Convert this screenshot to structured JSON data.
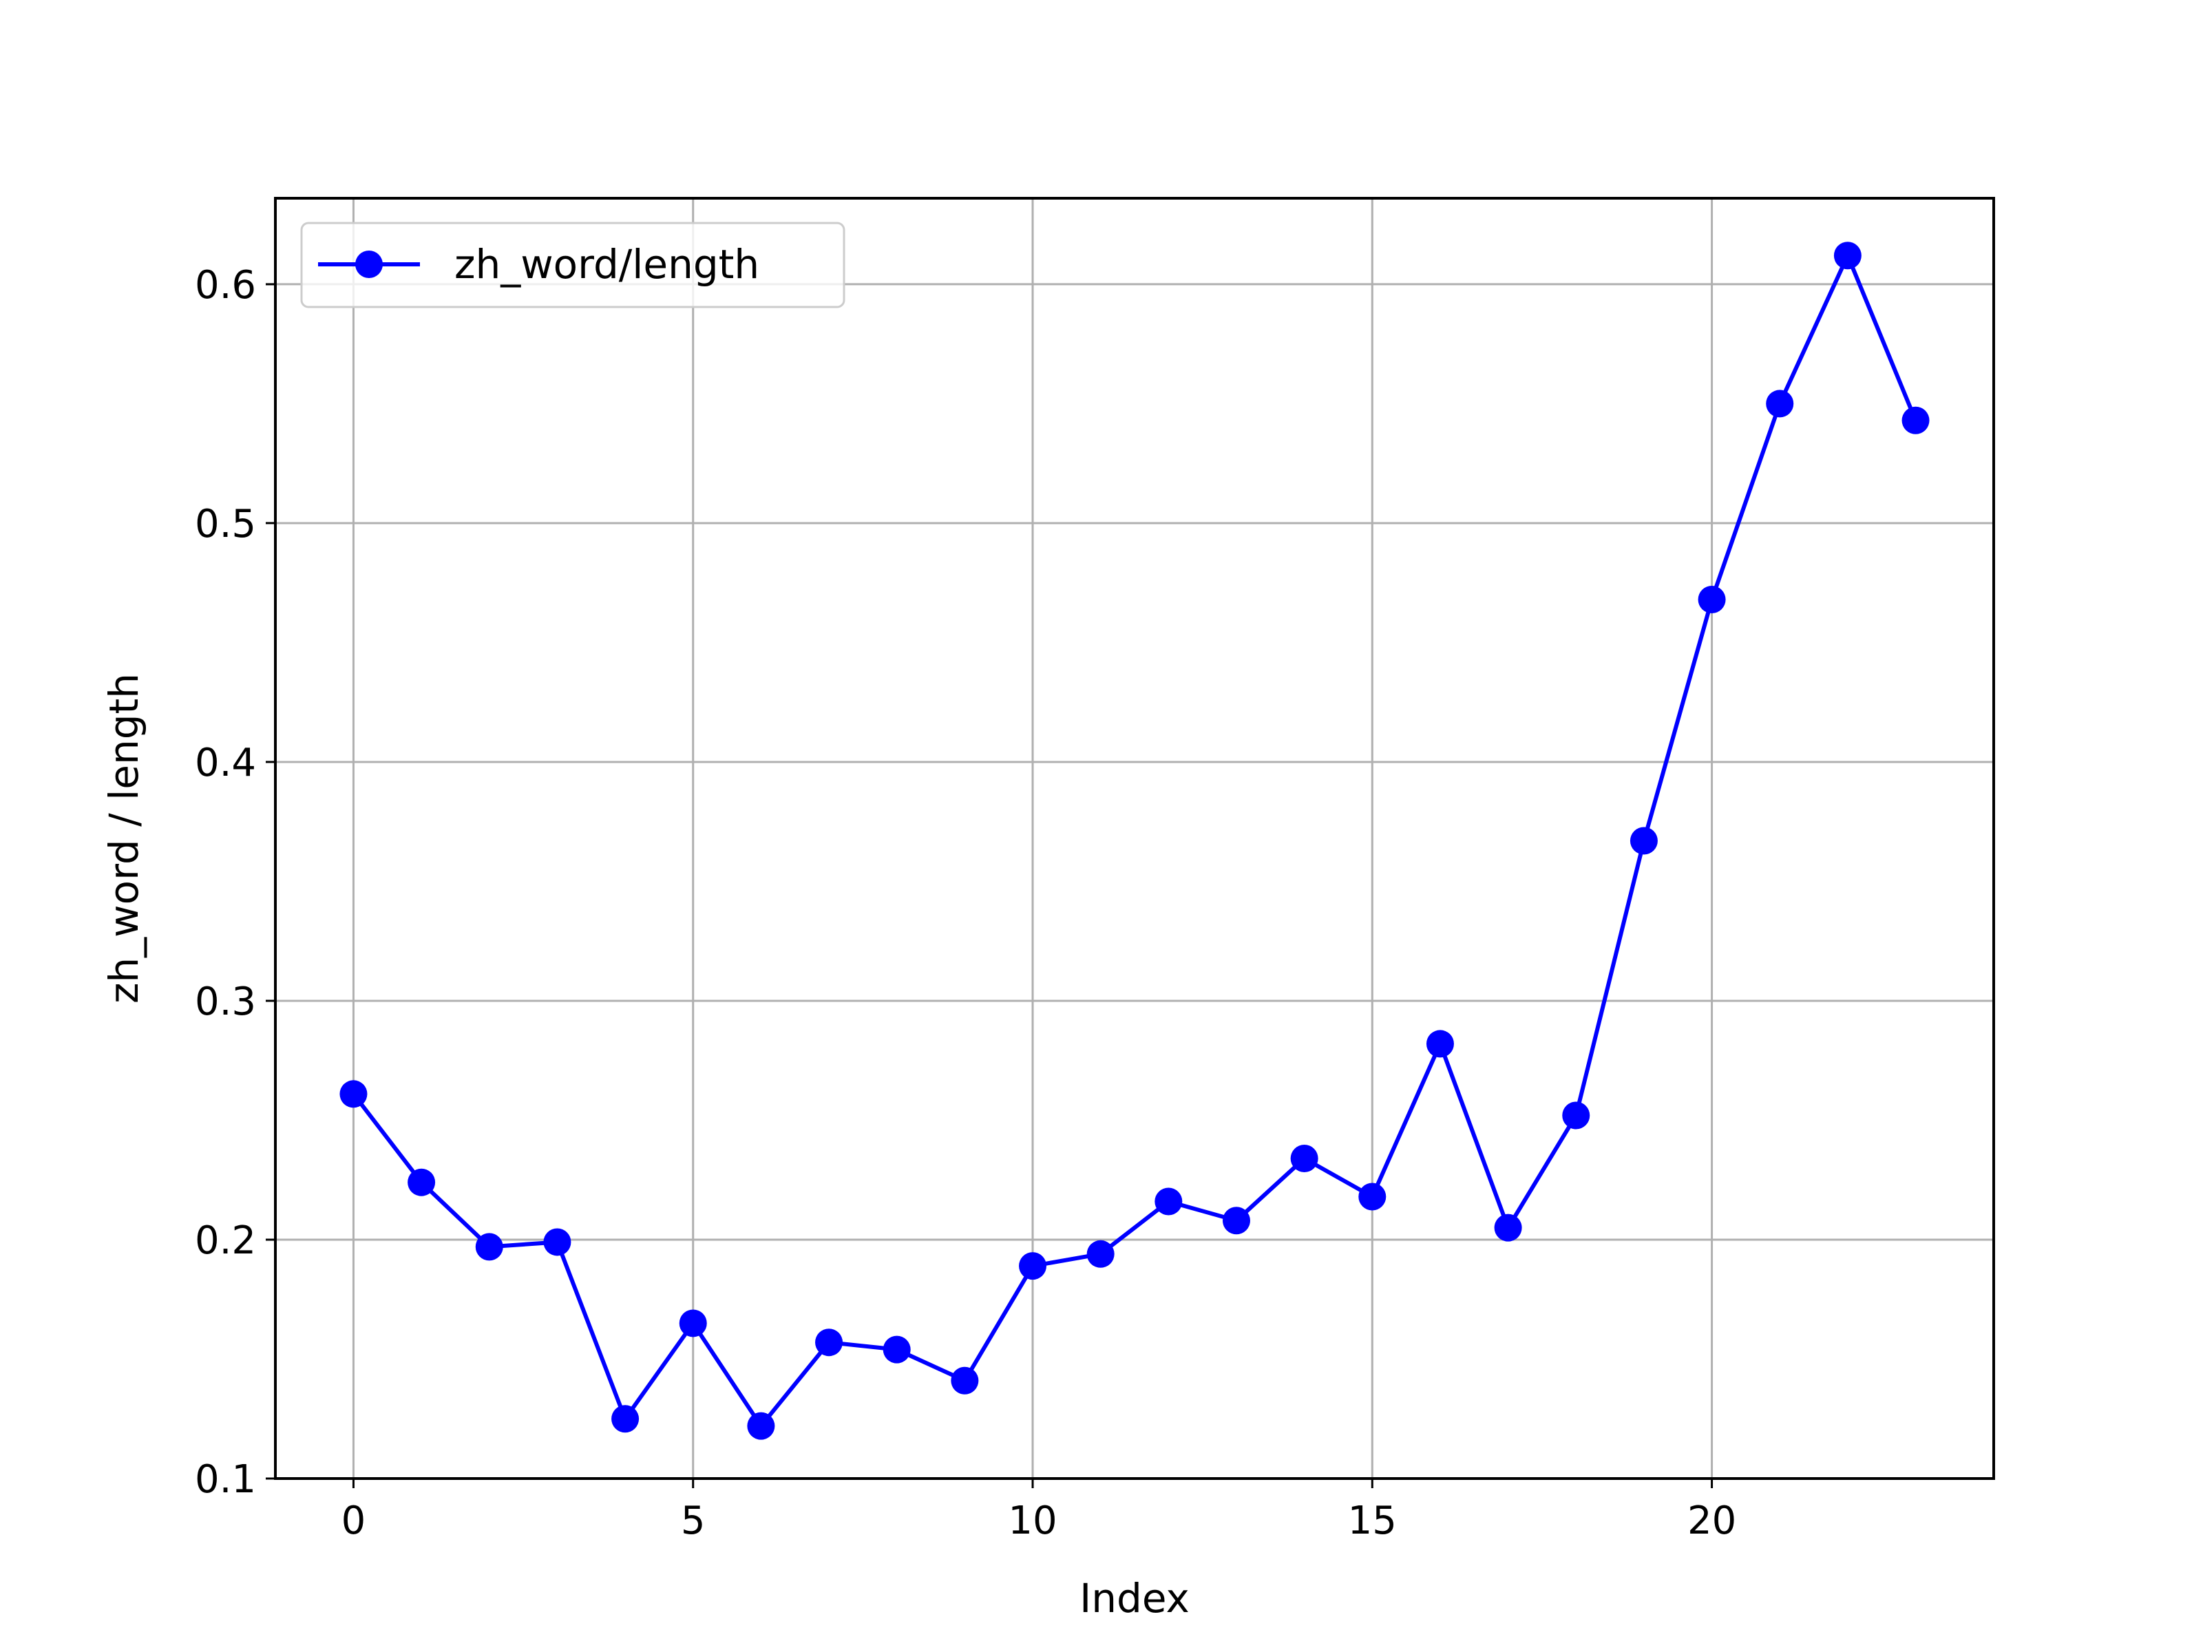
{
  "chart_data": {
    "type": "line",
    "title": "",
    "xlabel": "Index",
    "ylabel": "zh_word / length",
    "xlim": [
      -1.15,
      24.15
    ],
    "ylim": [
      0.1,
      0.636
    ],
    "xticks": [
      0,
      5,
      10,
      15,
      20
    ],
    "yticks": [
      0.1,
      0.2,
      0.3,
      0.4,
      0.5,
      0.6
    ],
    "xtick_labels": [
      "0",
      "5",
      "10",
      "15",
      "20"
    ],
    "ytick_labels": [
      "0.1",
      "0.2",
      "0.3",
      "0.4",
      "0.5",
      "0.6"
    ],
    "grid": true,
    "legend_position": "upper left",
    "series": [
      {
        "name": "zh_word/length",
        "color": "#0000ff",
        "marker": "circle",
        "x": [
          0,
          1,
          2,
          3,
          4,
          5,
          6,
          7,
          8,
          9,
          10,
          11,
          12,
          13,
          14,
          15,
          16,
          17,
          18,
          19,
          20,
          21,
          22,
          23
        ],
        "values": [
          0.261,
          0.224,
          0.197,
          0.199,
          0.125,
          0.165,
          0.122,
          0.157,
          0.154,
          0.141,
          0.189,
          0.194,
          0.216,
          0.208,
          0.234,
          0.218,
          0.282,
          0.205,
          0.252,
          0.367,
          0.468,
          0.55,
          0.612,
          0.543
        ]
      }
    ]
  }
}
